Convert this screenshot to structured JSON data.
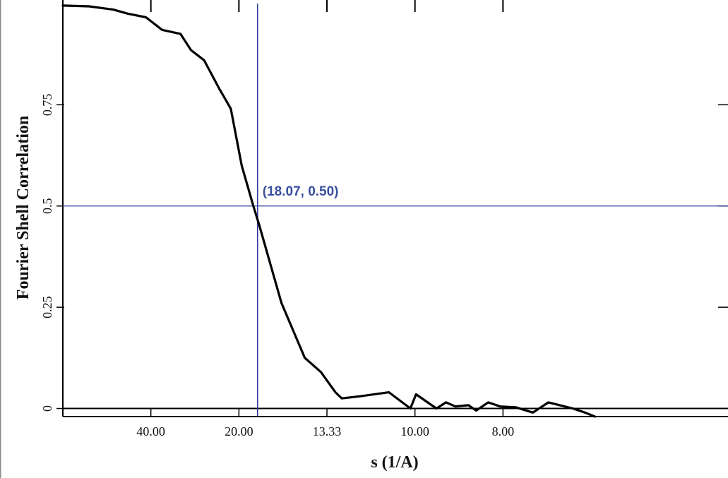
{
  "chart_data": {
    "type": "line",
    "xlabel": "s (1/A)",
    "ylabel": "Fourier Shell Correlation",
    "xlim": [
      0.0,
      0.1889
    ],
    "ylim": [
      -0.02,
      1.0
    ],
    "x_ticks": [
      {
        "value": 0.025,
        "label": "40.00"
      },
      {
        "value": 0.05,
        "label": "20.00"
      },
      {
        "value": 0.075,
        "label": "13.33"
      },
      {
        "value": 0.1,
        "label": "10.00"
      },
      {
        "value": 0.125,
        "label": "8.00"
      }
    ],
    "y_ticks": [
      {
        "value": 0.0,
        "label": "0"
      },
      {
        "value": 0.25,
        "label": "0.25"
      },
      {
        "value": 0.5,
        "label": "0.5"
      },
      {
        "value": 0.75,
        "label": "0.75"
      }
    ],
    "series": [
      {
        "color": "#000000",
        "x": [
          0.0,
          0.0075,
          0.0143,
          0.0184,
          0.0236,
          0.0282,
          0.0334,
          0.0364,
          0.0401,
          0.0444,
          0.0477,
          0.0508,
          0.0541,
          0.0557,
          0.0621,
          0.0687,
          0.0733,
          0.0774,
          0.0792,
          0.0843,
          0.0926,
          0.0987,
          0.1003,
          0.1061,
          0.1088,
          0.1115,
          0.1152,
          0.1174,
          0.1208,
          0.1242,
          0.1286,
          0.1335,
          0.1379,
          0.1448,
          0.1483,
          0.1511
        ],
        "y": [
          0.995,
          0.993,
          0.985,
          0.975,
          0.966,
          0.935,
          0.925,
          0.885,
          0.86,
          0.79,
          0.74,
          0.6,
          0.5,
          0.455,
          0.26,
          0.125,
          0.09,
          0.04,
          0.025,
          0.03,
          0.04,
          0.0,
          0.035,
          0.0,
          0.015,
          0.005,
          0.008,
          -0.005,
          0.015,
          0.005,
          0.003,
          -0.01,
          0.015,
          0.0,
          -0.01,
          -0.02
        ]
      }
    ],
    "hline": {
      "y": 0.5,
      "color": "#2e3f9e"
    },
    "vline": {
      "x": 0.0553,
      "color": "#2e3f9e"
    },
    "zero_line": {
      "y": 0.0,
      "color": "#000000"
    },
    "annotation": {
      "text": "(18.07, 0.50)",
      "x": 0.0553,
      "y": 0.5,
      "color": "#3a4fa0"
    },
    "grid": false
  }
}
